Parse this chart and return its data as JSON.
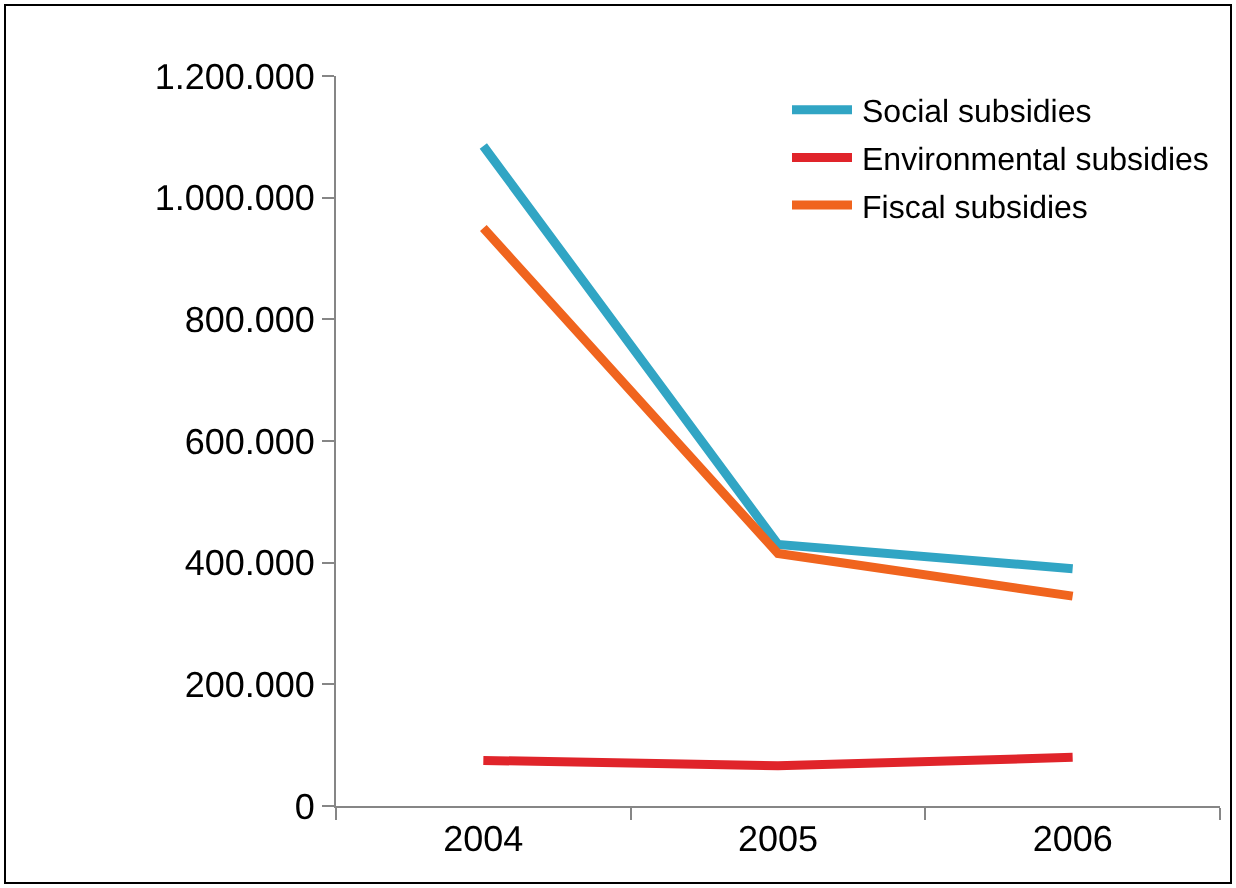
{
  "chart_data": {
    "type": "line",
    "categories": [
      "2004",
      "2005",
      "2006"
    ],
    "series": [
      {
        "name": "Social subsidies",
        "color": "#31a5c4",
        "values": [
          1085000,
          430000,
          390000
        ]
      },
      {
        "name": "Environmental subsidies",
        "color": "#e0242a",
        "values": [
          75000,
          66000,
          80000
        ]
      },
      {
        "name": "Fiscal subsidies",
        "color": "#f0641e",
        "values": [
          950000,
          415000,
          345000
        ]
      }
    ],
    "ylim": [
      0,
      1200000
    ],
    "yticks": [
      0,
      {
        "value": 200000,
        "label": "200.000"
      },
      {
        "value": 400000,
        "label": "400.000"
      },
      {
        "value": 600000,
        "label": "600.000"
      },
      {
        "value": 800000,
        "label": "800.000"
      },
      {
        "value": 1000000,
        "label": "1.000.000"
      },
      {
        "value": 1200000,
        "label": "1.200.000"
      }
    ],
    "grid": false,
    "legend": "top right",
    "marker": "none",
    "line_style": "solid"
  }
}
